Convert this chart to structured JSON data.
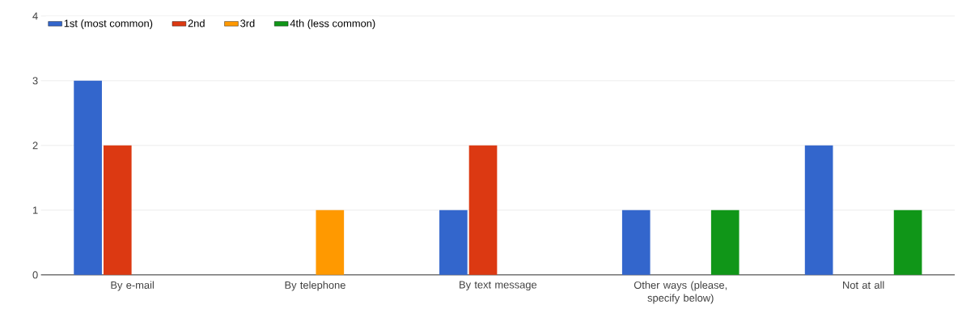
{
  "chart_data": {
    "type": "bar",
    "categories": [
      "By e-mail",
      "By telephone",
      "By text message",
      "Other ways (please, specify below)",
      "Not at all"
    ],
    "series": [
      {
        "name": "1st (most common)",
        "color": "#3366cc",
        "values": [
          3,
          0,
          1,
          1,
          2
        ]
      },
      {
        "name": "2nd",
        "color": "#dc3912",
        "values": [
          2,
          0,
          2,
          0,
          0
        ]
      },
      {
        "name": "3rd",
        "color": "#ff9900",
        "values": [
          0,
          1,
          0,
          0,
          0
        ]
      },
      {
        "name": "4th (less common)",
        "color": "#109618",
        "values": [
          0,
          0,
          0,
          1,
          1
        ]
      }
    ],
    "ylim": [
      0,
      4
    ],
    "yticks": [
      0,
      1,
      2,
      3,
      4
    ],
    "grid": "y",
    "legend": "top left"
  }
}
